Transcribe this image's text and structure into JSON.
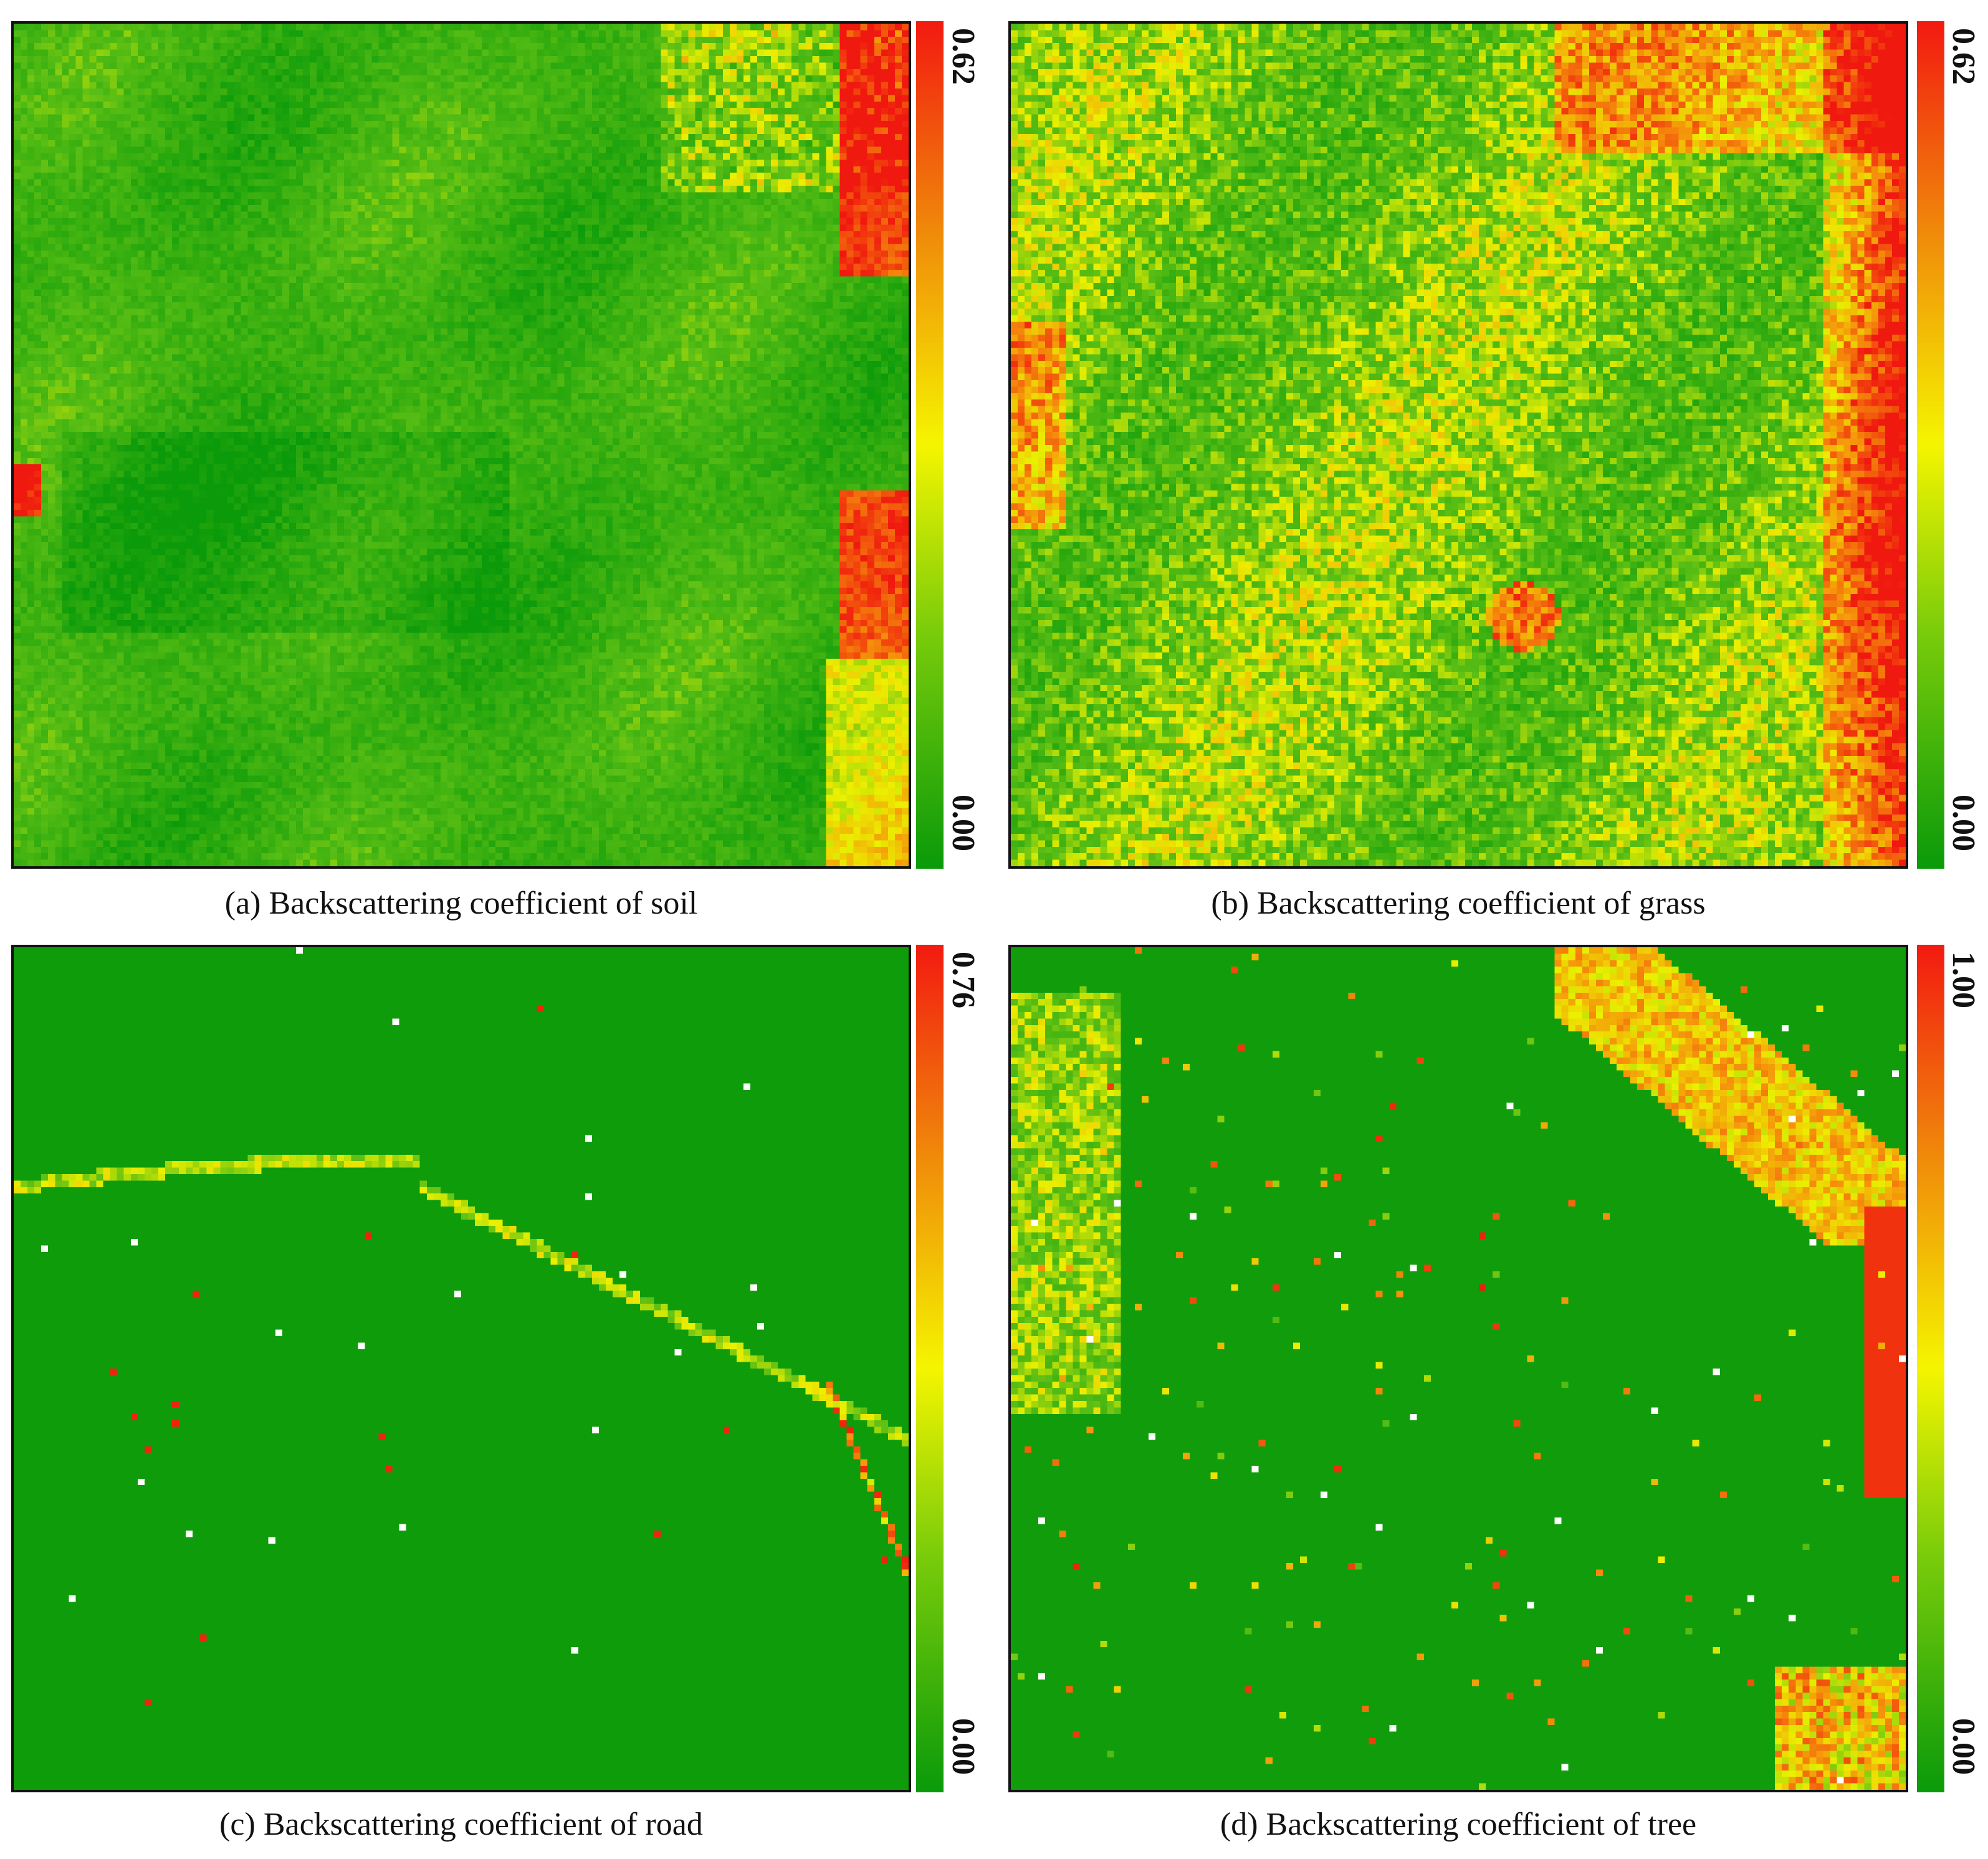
{
  "colormap": {
    "low": "#0a9a0a",
    "mid": "#f5f500",
    "high": "#f21a10"
  },
  "chart_data": [
    {
      "type": "heatmap",
      "title": "(a) Backscattering coefficient of soil",
      "colorbar": {
        "min_label": "0.00",
        "max_label": "0.62",
        "range": [
          0.0,
          0.62
        ]
      },
      "dominant_pattern": "mostly green with yellow ridges; red clusters along top-right and right edge",
      "hotspots": [
        "top-right corner",
        "right edge middle",
        "left edge middle"
      ]
    },
    {
      "type": "heatmap",
      "title": "(b) Backscattering coefficient of grass",
      "colorbar": {
        "min_label": "0.00",
        "max_label": "0.62",
        "range": [
          0.0,
          0.62
        ]
      },
      "dominant_pattern": "yellow-green speckled texture; dense red band along right edge",
      "hotspots": [
        "right edge",
        "top-right",
        "center-right patches"
      ]
    },
    {
      "type": "heatmap",
      "title": "(c) Backscattering coefficient of road",
      "colorbar": {
        "min_label": "0.00",
        "max_label": "0.76",
        "range": [
          0.0,
          0.76
        ]
      },
      "dominant_pattern": "uniform green background with a thin curved road line and sparse red/white pixels",
      "hotspots": [
        "road curve across upper middle",
        "right edge"
      ]
    },
    {
      "type": "heatmap",
      "title": "(d) Backscattering coefficient of tree",
      "colorbar": {
        "min_label": "0.00",
        "max_label": "1.00",
        "range": [
          0.0,
          1.0
        ]
      },
      "dominant_pattern": "green background with yellow diagonal band in top-right and red strip on right edge",
      "hotspots": [
        "top-right diagonal",
        "right edge",
        "bottom-right cluster"
      ]
    }
  ]
}
